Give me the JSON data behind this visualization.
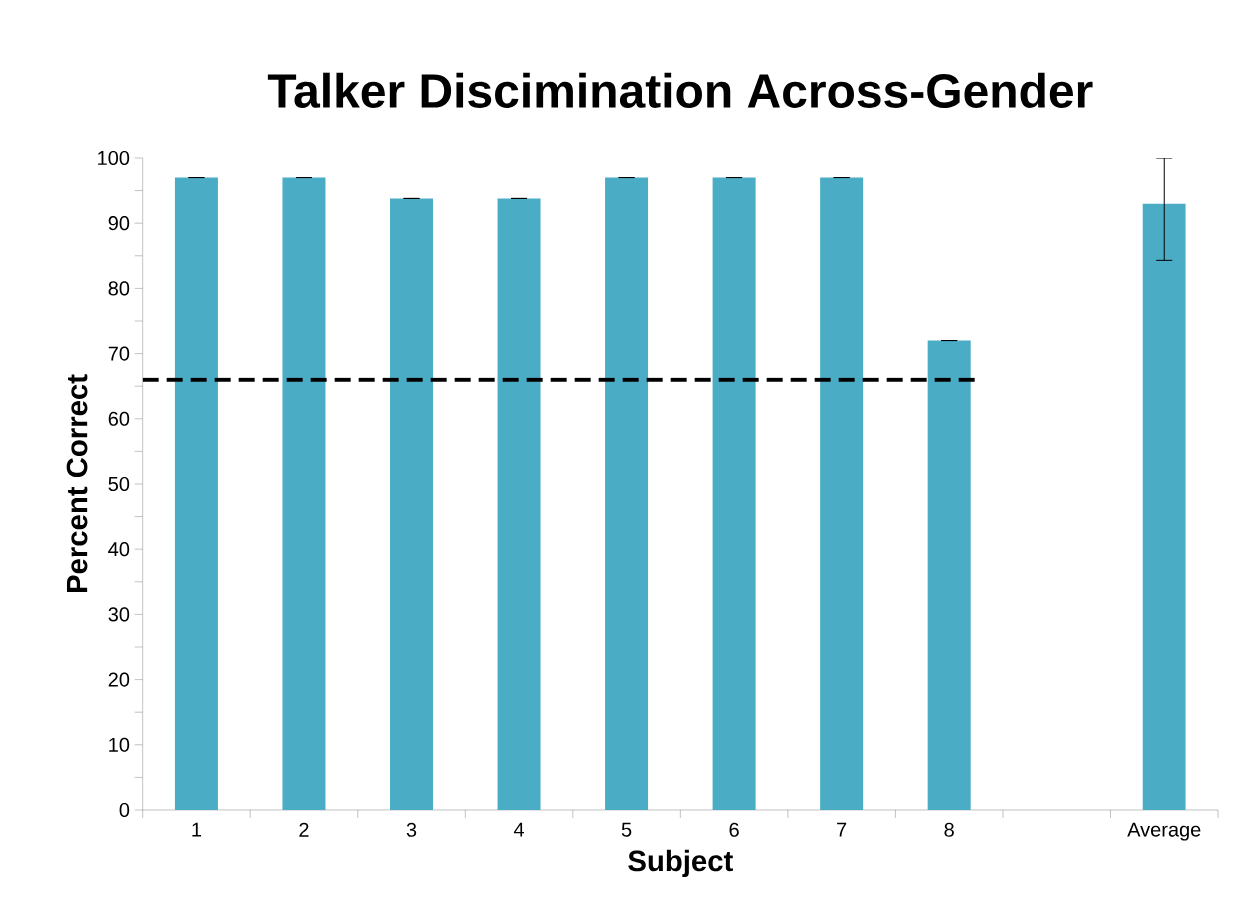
{
  "chart_data": {
    "type": "bar",
    "title": "Talker Discimination Across-Gender",
    "xlabel": "Subject",
    "ylabel": "Percent Correct",
    "categories": [
      "1",
      "2",
      "3",
      "4",
      "5",
      "6",
      "7",
      "8",
      null,
      "Average"
    ],
    "values": [
      97,
      97,
      93.8,
      93.8,
      97,
      97,
      97,
      72,
      null,
      93
    ],
    "errors": [
      0,
      0,
      0,
      0,
      0,
      0,
      0,
      0,
      null,
      [
        84.3,
        100
      ]
    ],
    "color": "#4bacc6",
    "ylim": [
      0,
      100
    ],
    "yticks": [
      0,
      10,
      20,
      30,
      40,
      50,
      60,
      70,
      80,
      90,
      100
    ],
    "grid": false,
    "ref_lines": [
      {
        "axis": "y",
        "value": 66,
        "line_style": "dashed",
        "color": "#000000"
      }
    ]
  }
}
